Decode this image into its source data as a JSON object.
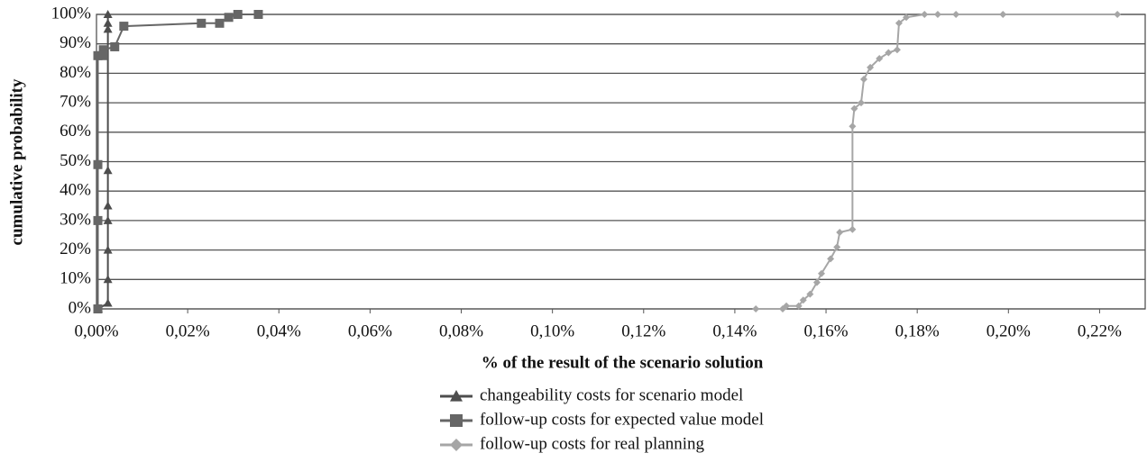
{
  "chart_data": {
    "type": "line",
    "x_label": "% of the result of the scenario solution",
    "y_label": "cumulative probability",
    "xlim": [
      0,
      0.23
    ],
    "ylim": [
      0,
      100
    ],
    "xticks": [
      {
        "value": 0,
        "label": "0,00%"
      },
      {
        "value": 0.02,
        "label": "0,02%"
      },
      {
        "value": 0.04,
        "label": "0,04%"
      },
      {
        "value": 0.06,
        "label": "0,06%"
      },
      {
        "value": 0.08,
        "label": "0,08%"
      },
      {
        "value": 0.1,
        "label": "0,10%"
      },
      {
        "value": 0.12,
        "label": "0,12%"
      },
      {
        "value": 0.14,
        "label": "0,14%"
      },
      {
        "value": 0.16,
        "label": "0,16%"
      },
      {
        "value": 0.18,
        "label": "0,18%"
      },
      {
        "value": 0.2,
        "label": "0,20%"
      },
      {
        "value": 0.22,
        "label": "0,22%"
      }
    ],
    "yticks": [
      {
        "value": 0,
        "label": "0%"
      },
      {
        "value": 10,
        "label": "10%"
      },
      {
        "value": 20,
        "label": "20%"
      },
      {
        "value": 30,
        "label": "30%"
      },
      {
        "value": 40,
        "label": "40%"
      },
      {
        "value": 50,
        "label": "50%"
      },
      {
        "value": 60,
        "label": "60%"
      },
      {
        "value": 70,
        "label": "70%"
      },
      {
        "value": 80,
        "label": "80%"
      },
      {
        "value": 90,
        "label": "90%"
      },
      {
        "value": 100,
        "label": "100%"
      }
    ],
    "grid": true,
    "legend": "bottom",
    "series": [
      {
        "name": "changeability costs for scenario model",
        "color": "#4d4d4d",
        "marker": "triangle",
        "x": [
          0.0004,
          0.0025,
          0.0025,
          0.0025,
          0.0025,
          0.0025,
          0.0025,
          0.0025,
          0.0025,
          0.0025
        ],
        "values": [
          0,
          2,
          10,
          20,
          30,
          35,
          47,
          95,
          97,
          100
        ]
      },
      {
        "name": "follow-up costs for expected value model",
        "color": "#666666",
        "marker": "square",
        "x": [
          0.0003,
          0.0003,
          0.0003,
          0.0003,
          0.0015,
          0.0015,
          0.004,
          0.006,
          0.023,
          0.027,
          0.029,
          0.031,
          0.0355
        ],
        "values": [
          0,
          30,
          49,
          86,
          86,
          88,
          89,
          96,
          97,
          97,
          99,
          100,
          100
        ]
      },
      {
        "name": "follow-up costs for real planning",
        "color": "#a6a6a6",
        "marker": "diamond",
        "x": [
          0.1446,
          0.1505,
          0.1513,
          0.154,
          0.155,
          0.1565,
          0.158,
          0.159,
          0.161,
          0.1624,
          0.163,
          0.1658,
          0.1658,
          0.1662,
          0.1677,
          0.1683,
          0.1697,
          0.1717,
          0.1737,
          0.1756,
          0.176,
          0.1776,
          0.1816,
          0.1845,
          0.1885,
          0.1988,
          0.2239
        ],
        "values": [
          0,
          0,
          1,
          1,
          3,
          5,
          9,
          12,
          17,
          21,
          26,
          27,
          62,
          68,
          70,
          78,
          82,
          85,
          87,
          88,
          97,
          99,
          100,
          100,
          100,
          100,
          100
        ]
      }
    ]
  }
}
